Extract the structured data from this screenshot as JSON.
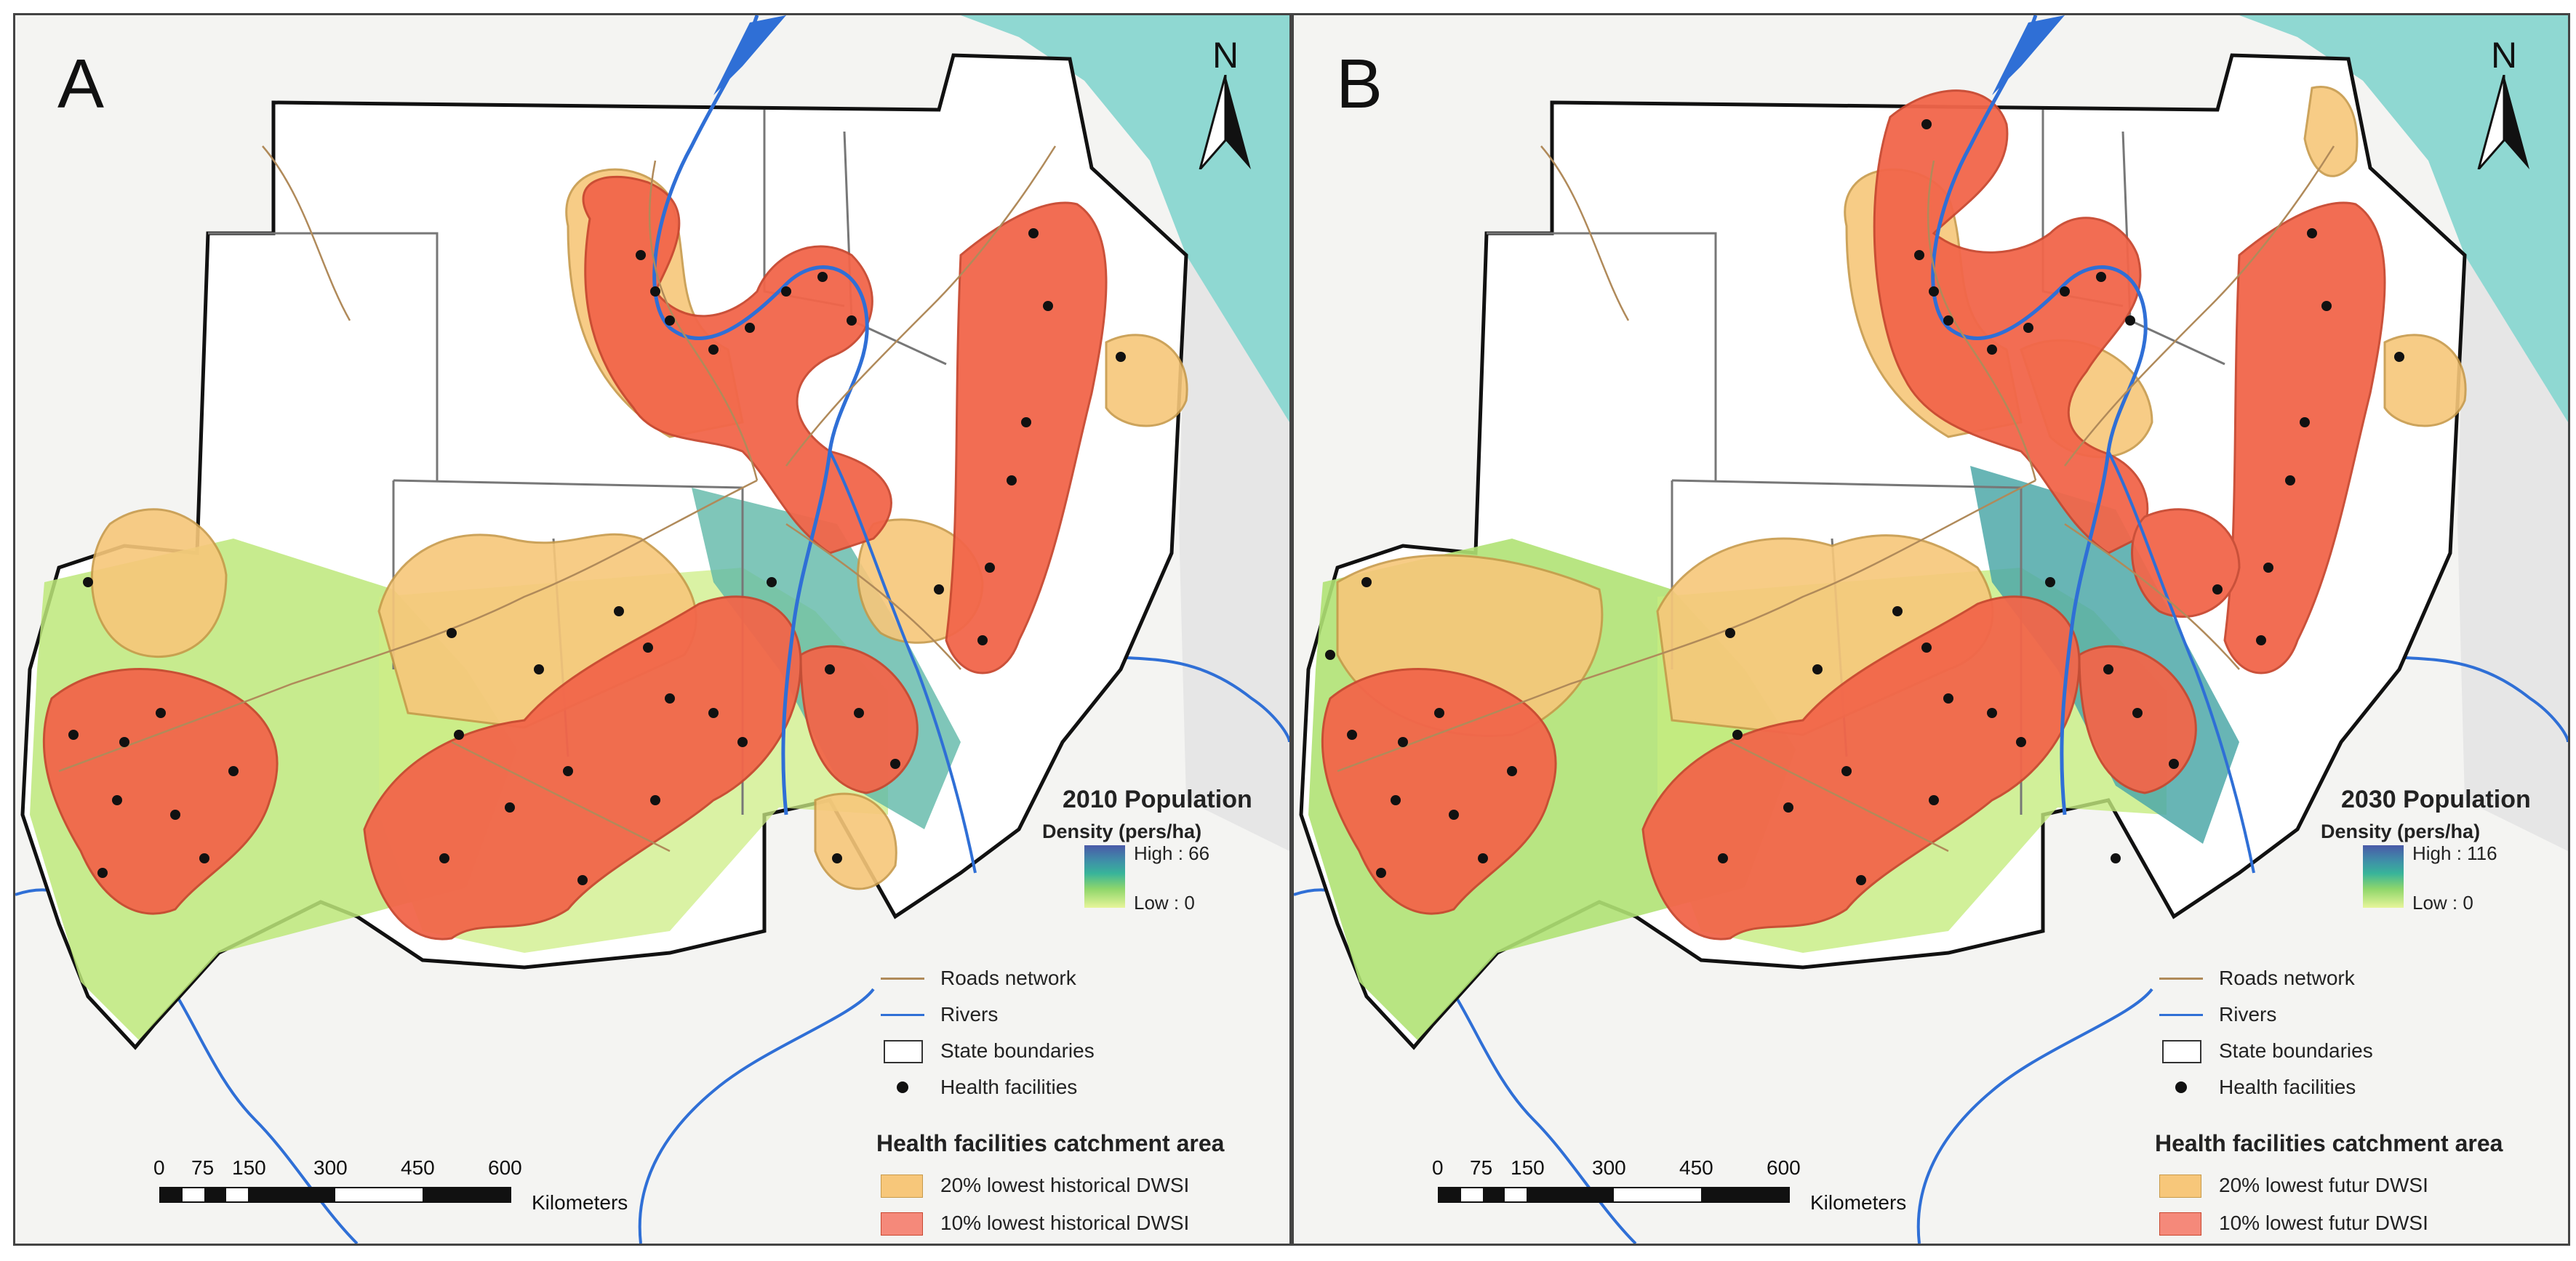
{
  "panels": [
    {
      "letter": "A",
      "north_label": "N",
      "density": {
        "title": "2010 Population",
        "subtitle": "Density (pers/ha)",
        "high": "High : 66",
        "low": "Low : 0"
      },
      "legend": {
        "roads": "Roads network",
        "rivers": "Rivers",
        "states": "State boundaries",
        "facilities": "Health facilities",
        "catchment_title": "Health facilities catchment area",
        "catch20": "20% lowest historical DWSI",
        "catch10": "10% lowest historical DWSI"
      },
      "scale": {
        "ticks": [
          "0",
          "75",
          "150",
          "300",
          "450",
          "600"
        ],
        "unit": "Kilometers"
      }
    },
    {
      "letter": "B",
      "north_label": "N",
      "density": {
        "title": "2030 Population",
        "subtitle": "Density (pers/ha)",
        "high": "High : 116",
        "low": "Low : 0"
      },
      "legend": {
        "roads": "Roads network",
        "rivers": "Rivers",
        "states": "State boundaries",
        "facilities": "Health facilities",
        "catchment_title": "Health facilities catchment area",
        "catch20": "20% lowest futur DWSI",
        "catch10": "10% lowest futur DWSI"
      },
      "scale": {
        "ticks": [
          "0",
          "75",
          "150",
          "300",
          "450",
          "600"
        ],
        "unit": "Kilometers"
      }
    }
  ],
  "colors": {
    "catch20": "#f7c77a",
    "catch10": "#f2664a",
    "river": "#2f6fd6",
    "road": "#b08a5a",
    "sea": "#8fd8d2",
    "density_high": "#4a5aa8",
    "density_low": "#e7f59a"
  }
}
